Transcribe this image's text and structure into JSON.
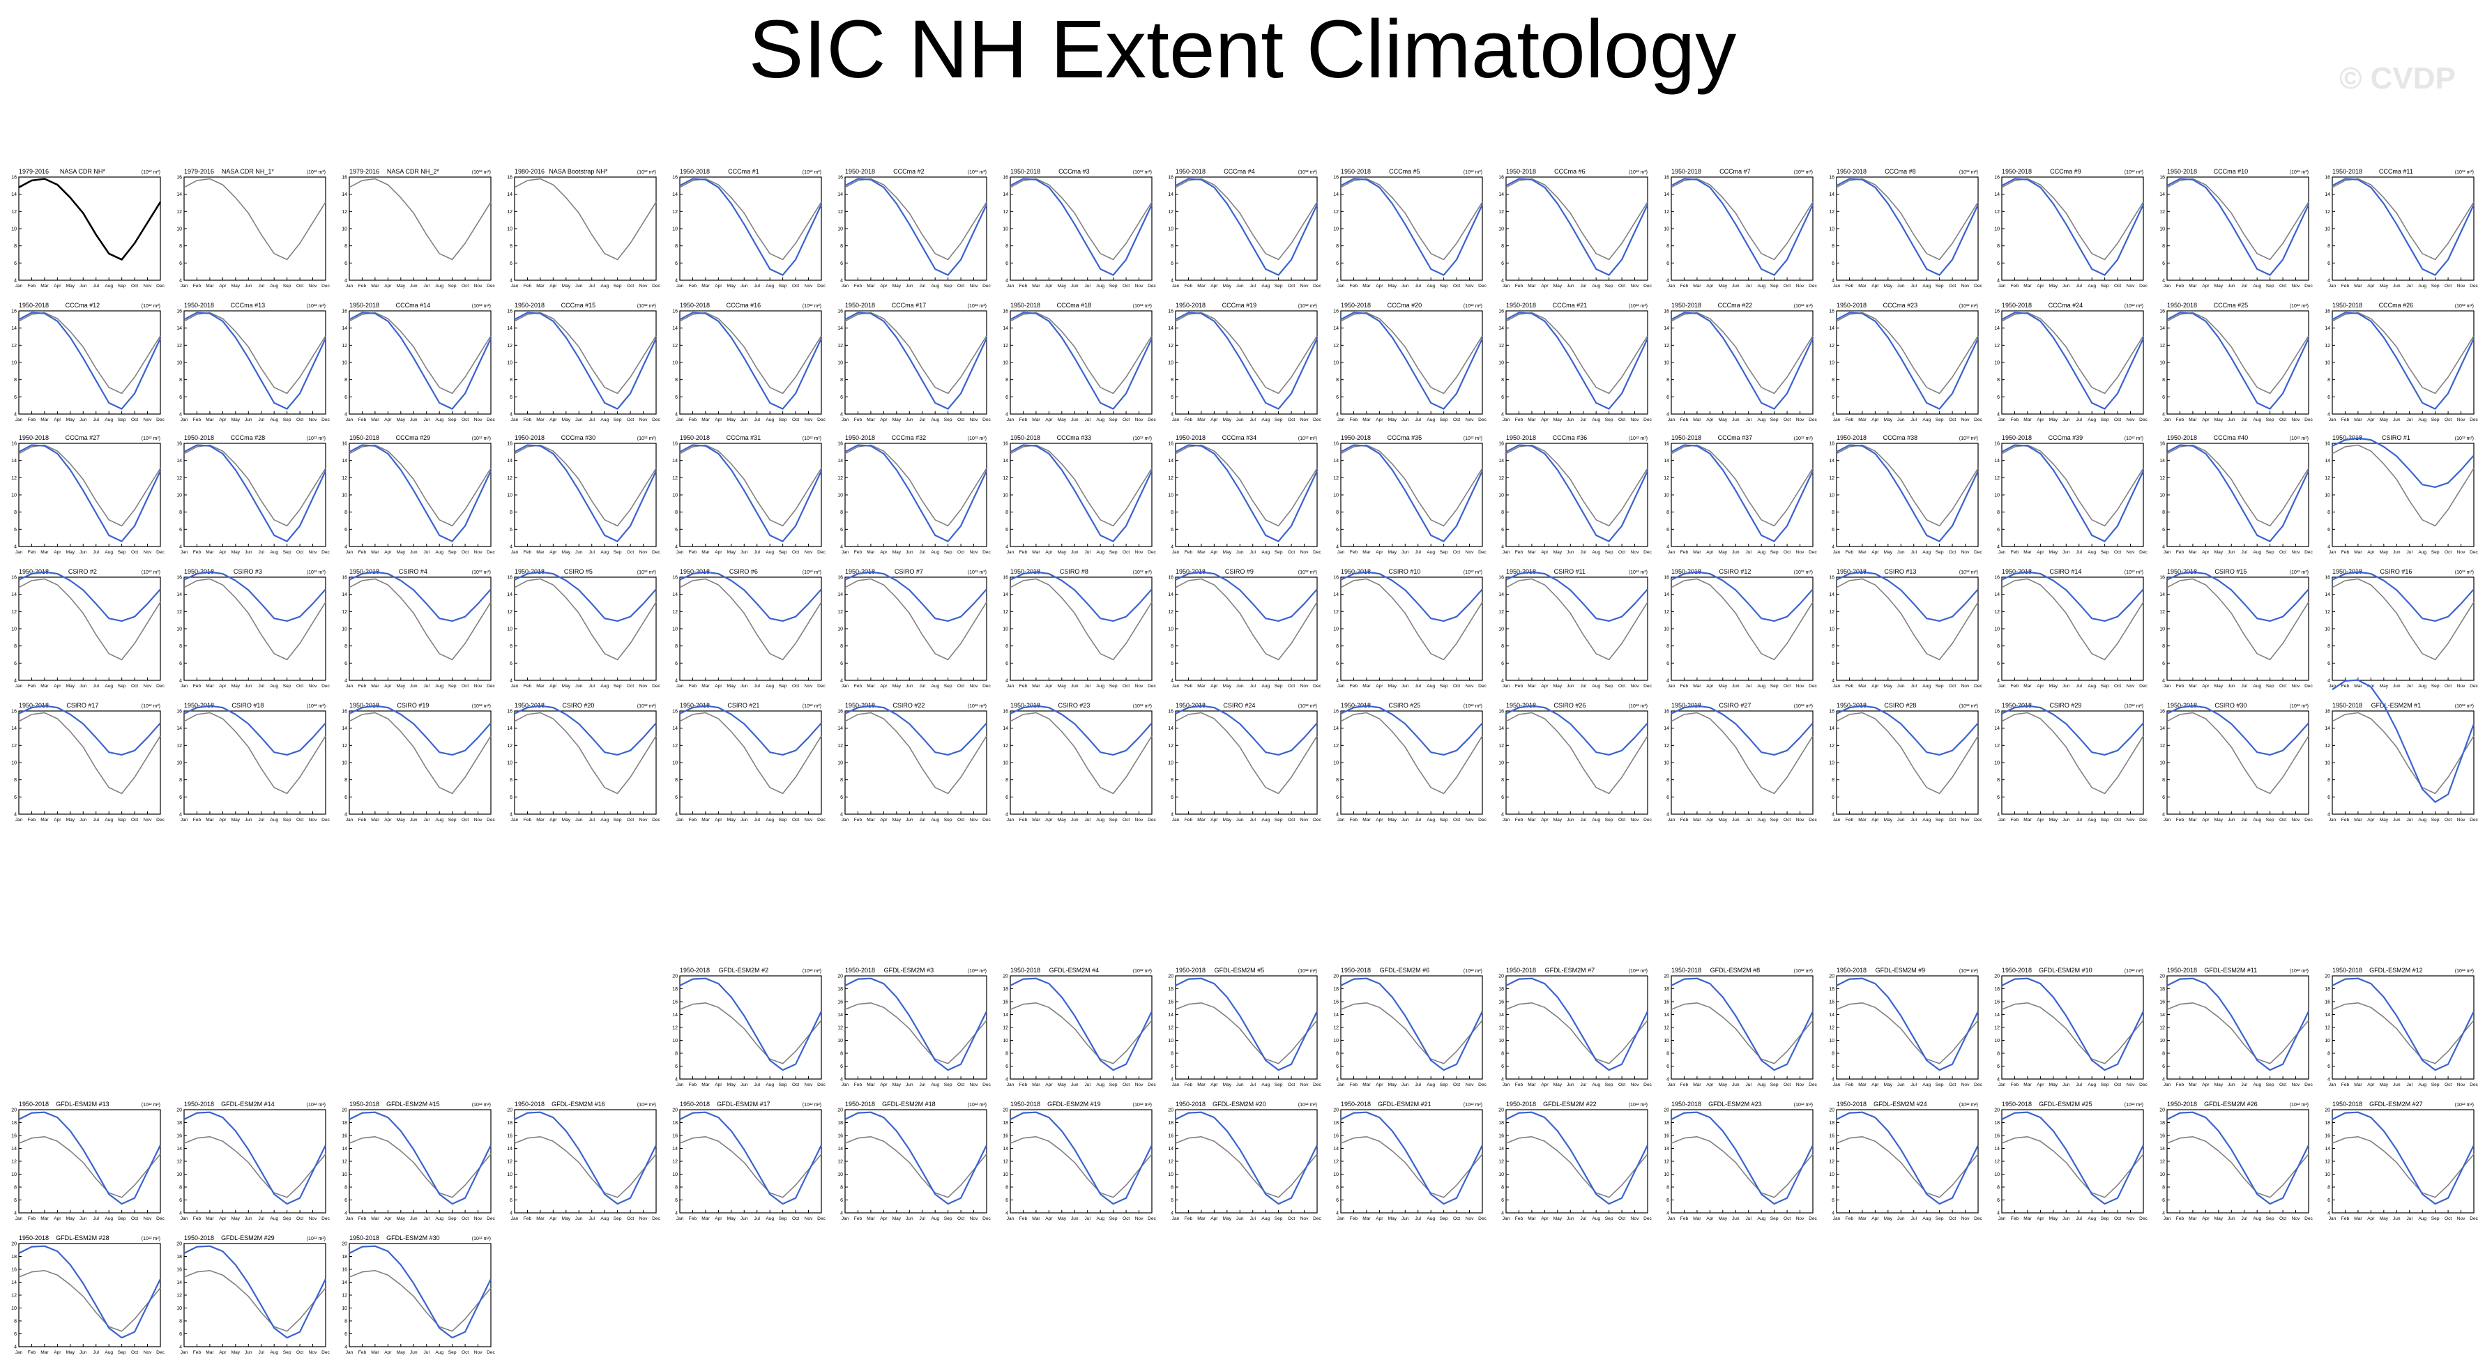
{
  "title": "SIC NH Extent Climatology",
  "watermark": "© CVDP",
  "colors": {
    "model": "#3a63cf",
    "observed": "#808080",
    "reference": "#000000"
  },
  "units_label": "(10¹² m²)",
  "chart_data": {
    "type": "line",
    "xlabel": "",
    "ylabel": "",
    "months": [
      "Jan",
      "Feb",
      "Mar",
      "Apr",
      "May",
      "Jun",
      "Jul",
      "Aug",
      "Sep",
      "Oct",
      "Nov",
      "Dec"
    ],
    "ylim": [
      4,
      16
    ],
    "yticks": [
      4,
      6,
      8,
      10,
      12,
      14,
      16
    ],
    "ylim_alt": [
      4,
      20
    ],
    "yticks_alt": [
      4,
      6,
      8,
      10,
      12,
      14,
      16,
      18,
      20
    ],
    "observed_series": [
      14.8,
      15.6,
      15.8,
      15.1,
      13.6,
      11.8,
      9.3,
      7.1,
      6.4,
      8.3,
      10.7,
      13.1
    ],
    "model_families": {
      "CCCma": [
        15.0,
        15.8,
        15.7,
        14.8,
        12.9,
        10.5,
        7.9,
        5.3,
        4.6,
        6.4,
        9.6,
        12.8
      ],
      "CSIRO": [
        15.7,
        16.4,
        16.6,
        16.4,
        15.6,
        14.5,
        12.9,
        11.2,
        10.9,
        11.4,
        12.9,
        14.6
      ],
      "GFDL-ESM2M": [
        18.5,
        19.5,
        19.6,
        18.8,
        16.7,
        13.8,
        10.4,
        6.9,
        5.4,
        6.3,
        10.4,
        14.5
      ]
    },
    "panels": [
      {
        "period": "1979-2016",
        "name": "NASA CDR NH*",
        "reference": true
      },
      {
        "period": "1979-2016",
        "name": "NASA CDR NH_1*"
      },
      {
        "period": "1979-2016",
        "name": "NASA CDR NH_2*"
      },
      {
        "period": "1980-2016",
        "name": "NASA Bootstrap NH*"
      },
      {
        "period": "1950-2018",
        "name": "CCCma #1",
        "family": "CCCma"
      },
      {
        "period": "1950-2018",
        "name": "CCCma #2",
        "family": "CCCma"
      },
      {
        "period": "1950-2018",
        "name": "CCCma #3",
        "family": "CCCma"
      },
      {
        "period": "1950-2018",
        "name": "CCCma #4",
        "family": "CCCma"
      },
      {
        "period": "1950-2018",
        "name": "CCCma #5",
        "family": "CCCma"
      },
      {
        "period": "1950-2018",
        "name": "CCCma #6",
        "family": "CCCma"
      },
      {
        "period": "1950-2018",
        "name": "CCCma #7",
        "family": "CCCma"
      },
      {
        "period": "1950-2018",
        "name": "CCCma #8",
        "family": "CCCma"
      },
      {
        "period": "1950-2018",
        "name": "CCCma #9",
        "family": "CCCma"
      },
      {
        "period": "1950-2018",
        "name": "CCCma #10",
        "family": "CCCma"
      },
      {
        "period": "1950-2018",
        "name": "CCCma #11",
        "family": "CCCma"
      },
      {
        "period": "1950-2018",
        "name": "CCCma #12",
        "family": "CCCma"
      },
      {
        "period": "1950-2018",
        "name": "CCCma #13",
        "family": "CCCma"
      },
      {
        "period": "1950-2018",
        "name": "CCCma #14",
        "family": "CCCma"
      },
      {
        "period": "1950-2018",
        "name": "CCCma #15",
        "family": "CCCma"
      },
      {
        "period": "1950-2018",
        "name": "CCCma #16",
        "family": "CCCma"
      },
      {
        "period": "1950-2018",
        "name": "CCCma #17",
        "family": "CCCma"
      },
      {
        "period": "1950-2018",
        "name": "CCCma #18",
        "family": "CCCma"
      },
      {
        "period": "1950-2018",
        "name": "CCCma #19",
        "family": "CCCma"
      },
      {
        "period": "1950-2018",
        "name": "CCCma #20",
        "family": "CCCma"
      },
      {
        "period": "1950-2018",
        "name": "CCCma #21",
        "family": "CCCma"
      },
      {
        "period": "1950-2018",
        "name": "CCCma #22",
        "family": "CCCma"
      },
      {
        "period": "1950-2018",
        "name": "CCCma #23",
        "family": "CCCma"
      },
      {
        "period": "1950-2018",
        "name": "CCCma #24",
        "family": "CCCma"
      },
      {
        "period": "1950-2018",
        "name": "CCCma #25",
        "family": "CCCma"
      },
      {
        "period": "1950-2018",
        "name": "CCCma #26",
        "family": "CCCma"
      },
      {
        "period": "1950-2018",
        "name": "CCCma #27",
        "family": "CCCma"
      },
      {
        "period": "1950-2018",
        "name": "CCCma #28",
        "family": "CCCma"
      },
      {
        "period": "1950-2018",
        "name": "CCCma #29",
        "family": "CCCma"
      },
      {
        "period": "1950-2018",
        "name": "CCCma #30",
        "family": "CCCma"
      },
      {
        "period": "1950-2018",
        "name": "CCCma #31",
        "family": "CCCma"
      },
      {
        "period": "1950-2018",
        "name": "CCCma #32",
        "family": "CCCma"
      },
      {
        "period": "1950-2018",
        "name": "CCCma #33",
        "family": "CCCma"
      },
      {
        "period": "1950-2018",
        "name": "CCCma #34",
        "family": "CCCma"
      },
      {
        "period": "1950-2018",
        "name": "CCCma #35",
        "family": "CCCma"
      },
      {
        "period": "1950-2018",
        "name": "CCCma #36",
        "family": "CCCma"
      },
      {
        "period": "1950-2018",
        "name": "CCCma #37",
        "family": "CCCma"
      },
      {
        "period": "1950-2018",
        "name": "CCCma #38",
        "family": "CCCma"
      },
      {
        "period": "1950-2018",
        "name": "CCCma #39",
        "family": "CCCma"
      },
      {
        "period": "1950-2018",
        "name": "CCCma #40",
        "family": "CCCma"
      },
      {
        "period": "1950-2018",
        "name": "CSIRO #1",
        "family": "CSIRO"
      },
      {
        "period": "1950-2018",
        "name": "CSIRO #2",
        "family": "CSIRO"
      },
      {
        "period": "1950-2018",
        "name": "CSIRO #3",
        "family": "CSIRO"
      },
      {
        "period": "1950-2018",
        "name": "CSIRO #4",
        "family": "CSIRO"
      },
      {
        "period": "1950-2018",
        "name": "CSIRO #5",
        "family": "CSIRO"
      },
      {
        "period": "1950-2018",
        "name": "CSIRO #6",
        "family": "CSIRO"
      },
      {
        "period": "1950-2018",
        "name": "CSIRO #7",
        "family": "CSIRO"
      },
      {
        "period": "1950-2018",
        "name": "CSIRO #8",
        "family": "CSIRO"
      },
      {
        "period": "1950-2018",
        "name": "CSIRO #9",
        "family": "CSIRO"
      },
      {
        "period": "1950-2018",
        "name": "CSIRO #10",
        "family": "CSIRO"
      },
      {
        "period": "1950-2018",
        "name": "CSIRO #11",
        "family": "CSIRO"
      },
      {
        "period": "1950-2018",
        "name": "CSIRO #12",
        "family": "CSIRO"
      },
      {
        "period": "1950-2018",
        "name": "CSIRO #13",
        "family": "CSIRO"
      },
      {
        "period": "1950-2018",
        "name": "CSIRO #14",
        "family": "CSIRO"
      },
      {
        "period": "1950-2018",
        "name": "CSIRO #15",
        "family": "CSIRO"
      },
      {
        "period": "1950-2018",
        "name": "CSIRO #16",
        "family": "CSIRO"
      },
      {
        "period": "1950-2018",
        "name": "CSIRO #17",
        "family": "CSIRO"
      },
      {
        "period": "1950-2018",
        "name": "CSIRO #18",
        "family": "CSIRO"
      },
      {
        "period": "1950-2018",
        "name": "CSIRO #19",
        "family": "CSIRO"
      },
      {
        "period": "1950-2018",
        "name": "CSIRO #20",
        "family": "CSIRO"
      },
      {
        "period": "1950-2018",
        "name": "CSIRO #21",
        "family": "CSIRO"
      },
      {
        "period": "1950-2018",
        "name": "CSIRO #22",
        "family": "CSIRO"
      },
      {
        "period": "1950-2018",
        "name": "CSIRO #23",
        "family": "CSIRO"
      },
      {
        "period": "1950-2018",
        "name": "CSIRO #24",
        "family": "CSIRO"
      },
      {
        "period": "1950-2018",
        "name": "CSIRO #25",
        "family": "CSIRO"
      },
      {
        "period": "1950-2018",
        "name": "CSIRO #26",
        "family": "CSIRO"
      },
      {
        "period": "1950-2018",
        "name": "CSIRO #27",
        "family": "CSIRO"
      },
      {
        "period": "1950-2018",
        "name": "CSIRO #28",
        "family": "CSIRO"
      },
      {
        "period": "1950-2018",
        "name": "CSIRO #29",
        "family": "CSIRO"
      },
      {
        "period": "1950-2018",
        "name": "CSIRO #30",
        "family": "CSIRO"
      },
      {
        "period": "1950-2018",
        "name": "GFDL-ESM2M #1",
        "family": "GFDL-ESM2M"
      },
      {
        "period": "1950-2018",
        "name": "GFDL-ESM2M #2",
        "family": "GFDL-ESM2M"
      },
      {
        "period": "1950-2018",
        "name": "GFDL-ESM2M #3",
        "family": "GFDL-ESM2M"
      },
      {
        "period": "1950-2018",
        "name": "GFDL-ESM2M #4",
        "family": "GFDL-ESM2M"
      },
      {
        "period": "1950-2018",
        "name": "GFDL-ESM2M #5",
        "family": "GFDL-ESM2M"
      },
      {
        "period": "1950-2018",
        "name": "GFDL-ESM2M #6",
        "family": "GFDL-ESM2M"
      },
      {
        "period": "1950-2018",
        "name": "GFDL-ESM2M #7",
        "family": "GFDL-ESM2M"
      },
      {
        "period": "1950-2018",
        "name": "GFDL-ESM2M #8",
        "family": "GFDL-ESM2M"
      },
      {
        "period": "1950-2018",
        "name": "GFDL-ESM2M #9",
        "family": "GFDL-ESM2M"
      },
      {
        "period": "1950-2018",
        "name": "GFDL-ESM2M #10",
        "family": "GFDL-ESM2M"
      },
      {
        "period": "1950-2018",
        "name": "GFDL-ESM2M #11",
        "family": "GFDL-ESM2M"
      },
      {
        "period": "1950-2018",
        "name": "GFDL-ESM2M #12",
        "family": "GFDL-ESM2M"
      },
      {
        "period": "1950-2018",
        "name": "GFDL-ESM2M #13",
        "family": "GFDL-ESM2M"
      },
      {
        "period": "1950-2018",
        "name": "GFDL-ESM2M #14",
        "family": "GFDL-ESM2M"
      },
      {
        "period": "1950-2018",
        "name": "GFDL-ESM2M #15",
        "family": "GFDL-ESM2M"
      },
      {
        "period": "1950-2018",
        "name": "GFDL-ESM2M #16",
        "family": "GFDL-ESM2M"
      },
      {
        "period": "1950-2018",
        "name": "GFDL-ESM2M #17",
        "family": "GFDL-ESM2M"
      },
      {
        "period": "1950-2018",
        "name": "GFDL-ESM2M #18",
        "family": "GFDL-ESM2M"
      },
      {
        "period": "1950-2018",
        "name": "GFDL-ESM2M #19",
        "family": "GFDL-ESM2M"
      },
      {
        "period": "1950-2018",
        "name": "GFDL-ESM2M #20",
        "family": "GFDL-ESM2M"
      },
      {
        "period": "1950-2018",
        "name": "GFDL-ESM2M #21",
        "family": "GFDL-ESM2M"
      },
      {
        "period": "1950-2018",
        "name": "GFDL-ESM2M #22",
        "family": "GFDL-ESM2M"
      },
      {
        "period": "1950-2018",
        "name": "GFDL-ESM2M #23",
        "family": "GFDL-ESM2M"
      },
      {
        "period": "1950-2018",
        "name": "GFDL-ESM2M #24",
        "family": "GFDL-ESM2M"
      },
      {
        "period": "1950-2018",
        "name": "GFDL-ESM2M #25",
        "family": "GFDL-ESM2M"
      },
      {
        "period": "1950-2018",
        "name": "GFDL-ESM2M #26",
        "family": "GFDL-ESM2M"
      },
      {
        "period": "1950-2018",
        "name": "GFDL-ESM2M #27",
        "family": "GFDL-ESM2M"
      },
      {
        "period": "1950-2018",
        "name": "GFDL-ESM2M #28",
        "family": "GFDL-ESM2M"
      },
      {
        "period": "1950-2018",
        "name": "GFDL-ESM2M #29",
        "family": "GFDL-ESM2M"
      },
      {
        "period": "1950-2018",
        "name": "GFDL-ESM2M #30",
        "family": "GFDL-ESM2M"
      }
    ]
  }
}
